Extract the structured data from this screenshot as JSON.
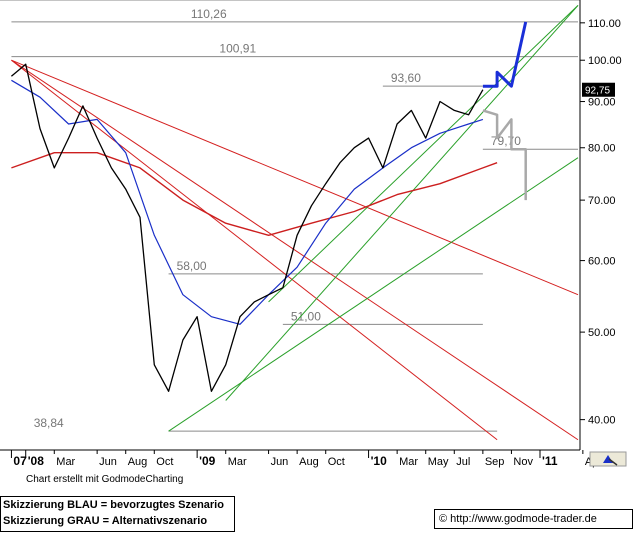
{
  "chart_data": {
    "type": "line",
    "title": "",
    "y_scale": "log",
    "ylim": [
      37,
      115
    ],
    "y_ticks": [
      "40.00",
      "50.00",
      "60.00",
      "70.00",
      "80.00",
      "90.00",
      "100.00",
      "110.00"
    ],
    "x_ticks": [
      "07",
      "'08",
      "Mar",
      "Jun",
      "Aug",
      "Oct",
      "'09",
      "Mar",
      "Jun",
      "Aug",
      "Oct",
      "'10",
      "Mar",
      "May",
      "Jul",
      "Sep",
      "Nov",
      "'11",
      "Apr"
    ],
    "x_tick_dates": [
      "2007-12",
      "2008-01",
      "2008-03",
      "2008-06",
      "2008-08",
      "2008-10",
      "2009-01",
      "2009-03",
      "2009-06",
      "2009-08",
      "2009-10",
      "2010-01",
      "2010-03",
      "2010-05",
      "2010-07",
      "2010-09",
      "2010-11",
      "2011-01",
      "2011-04"
    ],
    "current_price": "92,75",
    "horizontal_levels": [
      {
        "label": "110,26",
        "value": 110.26
      },
      {
        "label": "100,91",
        "value": 100.91
      },
      {
        "label": "93,60",
        "value": 93.6
      },
      {
        "label": "79,70",
        "value": 79.7
      },
      {
        "label": "58,00",
        "value": 58.0
      },
      {
        "label": "51,00",
        "value": 51.0
      },
      {
        "label": "38,84",
        "value": 38.84
      }
    ],
    "price_series": [
      [
        "2007-12",
        96
      ],
      [
        "2008-01",
        99
      ],
      [
        "2008-02",
        84
      ],
      [
        "2008-03",
        76
      ],
      [
        "2008-04",
        82
      ],
      [
        "2008-05",
        89
      ],
      [
        "2008-06",
        82
      ],
      [
        "2008-07",
        76
      ],
      [
        "2008-08",
        72
      ],
      [
        "2008-09",
        67
      ],
      [
        "2008-10",
        46
      ],
      [
        "2008-11",
        43
      ],
      [
        "2008-12",
        49
      ],
      [
        "2009-01",
        52
      ],
      [
        "2009-02",
        43
      ],
      [
        "2009-03",
        46
      ],
      [
        "2009-04",
        52
      ],
      [
        "2009-05",
        54
      ],
      [
        "2009-06",
        55
      ],
      [
        "2009-07",
        56
      ],
      [
        "2009-08",
        64
      ],
      [
        "2009-09",
        69
      ],
      [
        "2009-10",
        73
      ],
      [
        "2009-11",
        77
      ],
      [
        "2009-12",
        80
      ],
      [
        "2010-01",
        82
      ],
      [
        "2010-02",
        76
      ],
      [
        "2010-03",
        85
      ],
      [
        "2010-04",
        88
      ],
      [
        "2010-05",
        82
      ],
      [
        "2010-06",
        90
      ],
      [
        "2010-07",
        88
      ],
      [
        "2010-08",
        87
      ],
      [
        "2010-09",
        92.75
      ]
    ],
    "moving_average_blue": [
      [
        "2007-12",
        95
      ],
      [
        "2008-02",
        91
      ],
      [
        "2008-04",
        85
      ],
      [
        "2008-06",
        86
      ],
      [
        "2008-08",
        79
      ],
      [
        "2008-10",
        64
      ],
      [
        "2008-12",
        55
      ],
      [
        "2009-02",
        52
      ],
      [
        "2009-04",
        51
      ],
      [
        "2009-06",
        55
      ],
      [
        "2009-08",
        59
      ],
      [
        "2009-10",
        66
      ],
      [
        "2009-12",
        72
      ],
      [
        "2010-02",
        76
      ],
      [
        "2010-04",
        80
      ],
      [
        "2010-06",
        83
      ],
      [
        "2010-08",
        85
      ],
      [
        "2010-09",
        86
      ]
    ],
    "moving_average_red": [
      [
        "2007-12",
        76
      ],
      [
        "2008-03",
        79
      ],
      [
        "2008-06",
        79
      ],
      [
        "2008-09",
        76
      ],
      [
        "2008-12",
        70
      ],
      [
        "2009-03",
        66
      ],
      [
        "2009-06",
        64
      ],
      [
        "2009-09",
        66
      ],
      [
        "2009-12",
        68
      ],
      [
        "2010-03",
        71
      ],
      [
        "2010-06",
        73
      ],
      [
        "2010-09",
        76
      ],
      [
        "2010-10",
        77
      ]
    ],
    "scenario_blue": {
      "name": "bevorzugtes Szenario",
      "points": [
        [
          "2010-09",
          93.6
        ],
        [
          "2010-10",
          93.6
        ],
        [
          "2010-10",
          97
        ],
        [
          "2010-11",
          93.6
        ],
        [
          "2010-12",
          110.26
        ]
      ]
    },
    "scenario_gray": {
      "name": "Alternativszenario",
      "points": [
        [
          "2010-09",
          88
        ],
        [
          "2010-10",
          87
        ],
        [
          "2010-10",
          82
        ],
        [
          "2010-11",
          86
        ],
        [
          "2010-11",
          79.7
        ],
        [
          "2010-12",
          79.7
        ],
        [
          "2010-12",
          70
        ]
      ]
    },
    "trendlines_red": [
      {
        "from": [
          "2007-12",
          100
        ],
        "to": [
          "2011-04",
          55
        ]
      },
      {
        "from": [
          "2007-12",
          100
        ],
        "to": [
          "2011-04",
          38
        ]
      },
      {
        "from": [
          "2007-12",
          100
        ],
        "to": [
          "2010-10",
          38
        ]
      }
    ],
    "trendlines_green": [
      {
        "from": [
          "2008-11",
          38.84
        ],
        "to": [
          "2011-04",
          78
        ]
      },
      {
        "from": [
          "2009-03",
          42
        ],
        "to": [
          "2011-04",
          115
        ]
      },
      {
        "from": [
          "2009-06",
          54
        ],
        "to": [
          "2011-04",
          115
        ]
      }
    ]
  },
  "legend": {
    "line1": "Skizzierung BLAU = bevorzugtes Szenario",
    "line2": "Skizzierung GRAU = Alternativszenario"
  },
  "credit": "Chart erstellt mit GodmodeCharting",
  "url": "© http://www.godmode-trader.de",
  "colors": {
    "price": "#000000",
    "ma_blue": "#1a2fc8",
    "ma_red": "#cc1f1f",
    "trend_red": "#d42020",
    "trend_green": "#2aa02a",
    "scenario_blue": "#1a2fd8",
    "scenario_gray": "#a9a9a9",
    "level": "#8a8a8a",
    "axis": "#000000",
    "price_label_bg": "#000000",
    "price_label_fg": "#ffffff"
  }
}
